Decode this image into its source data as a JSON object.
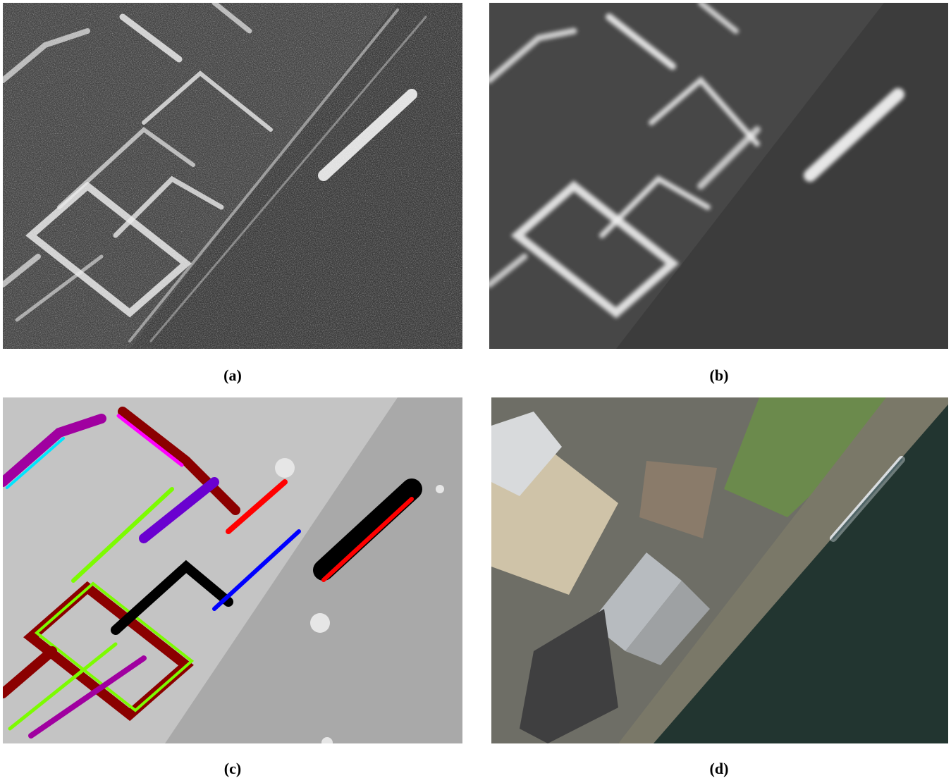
{
  "panels": [
    {
      "id": "a",
      "caption": "(a)",
      "content": "sar-amplitude-image"
    },
    {
      "id": "b",
      "caption": "(b)",
      "content": "despeckled-sar-image"
    },
    {
      "id": "c",
      "caption": "(c)",
      "content": "color-coded-map"
    },
    {
      "id": "d",
      "caption": "(d)",
      "content": "optical-aerial-image"
    }
  ]
}
